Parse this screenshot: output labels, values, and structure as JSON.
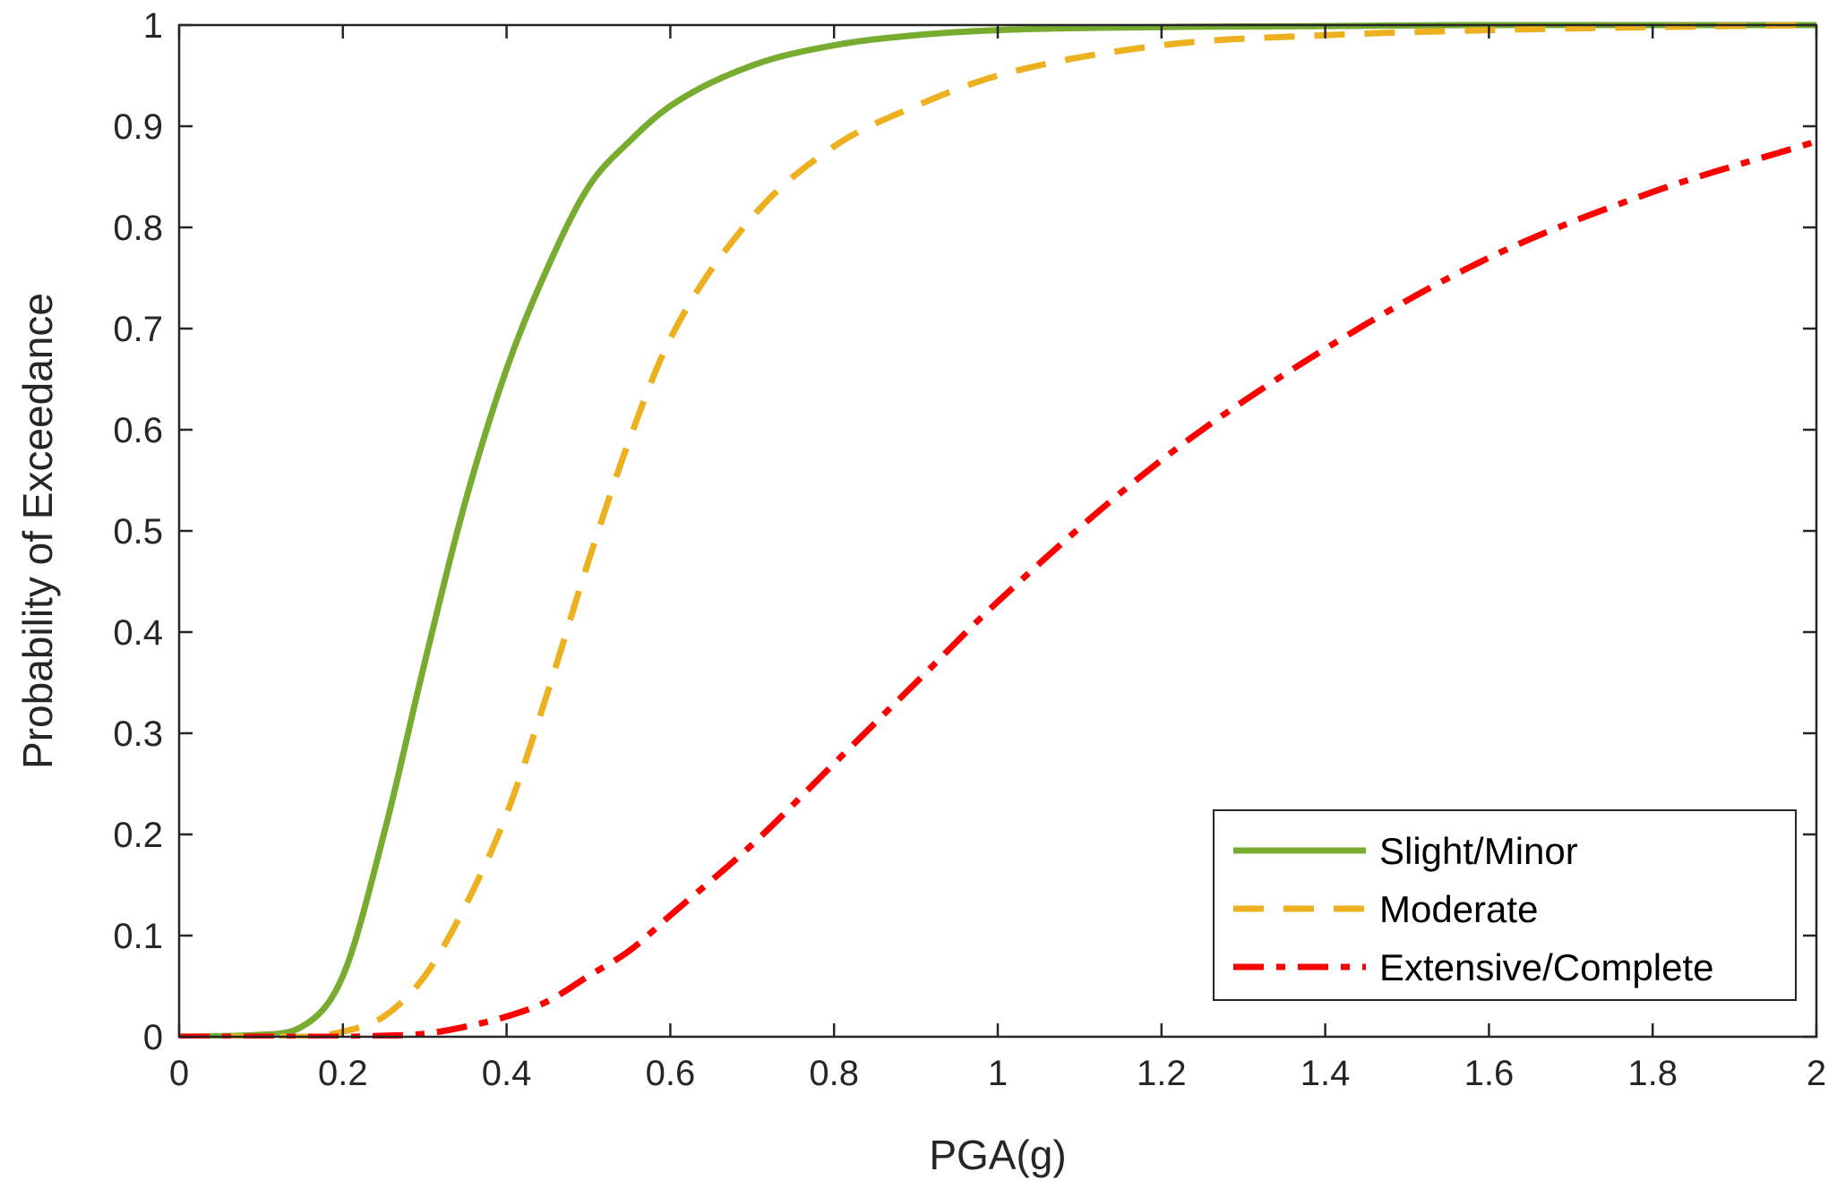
{
  "chart_data": {
    "type": "line",
    "title": "",
    "xlabel": "PGA(g)",
    "ylabel": "Probability of Exceedance",
    "xlim": [
      0,
      2
    ],
    "ylim": [
      0,
      1
    ],
    "grid": false,
    "legend_position": "bottom-right",
    "xticks": [
      "0",
      "0.2",
      "0.4",
      "0.6",
      "0.8",
      "1",
      "1.2",
      "1.4",
      "1.6",
      "1.8",
      "2"
    ],
    "yticks": [
      "0",
      "0.1",
      "0.2",
      "0.3",
      "0.4",
      "0.5",
      "0.6",
      "0.7",
      "0.8",
      "0.9",
      "1"
    ],
    "x": [
      0,
      0.1,
      0.15,
      0.2,
      0.25,
      0.3,
      0.35,
      0.4,
      0.45,
      0.5,
      0.55,
      0.6,
      0.7,
      0.8,
      0.9,
      1.0,
      1.2,
      1.4,
      1.6,
      1.8,
      2.0
    ],
    "series": [
      {
        "name": "Slight/Minor",
        "color": "#77AC30",
        "style": "solid",
        "values": [
          0,
          0.002,
          0.01,
          0.06,
          0.2,
          0.37,
          0.53,
          0.66,
          0.76,
          0.84,
          0.885,
          0.92,
          0.96,
          0.98,
          0.99,
          0.995,
          0.998,
          0.999,
          1.0,
          1.0,
          1.0
        ]
      },
      {
        "name": "Moderate",
        "color": "#EDB120",
        "style": "dashed",
        "values": [
          0,
          0,
          0,
          0.005,
          0.02,
          0.06,
          0.13,
          0.22,
          0.34,
          0.47,
          0.59,
          0.69,
          0.81,
          0.88,
          0.92,
          0.95,
          0.98,
          0.99,
          0.995,
          0.998,
          1.0
        ]
      },
      {
        "name": "Extensive/Complete",
        "color": "#FF0000",
        "style": "dashdot",
        "values": [
          0,
          0,
          0,
          0,
          0.001,
          0.003,
          0.01,
          0.02,
          0.035,
          0.06,
          0.085,
          0.12,
          0.19,
          0.27,
          0.35,
          0.43,
          0.57,
          0.68,
          0.77,
          0.835,
          0.885
        ]
      }
    ]
  }
}
